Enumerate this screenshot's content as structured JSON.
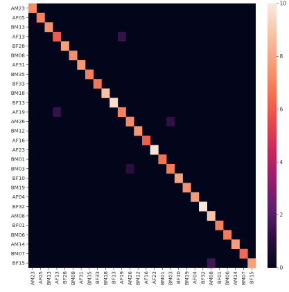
{
  "chart_data": {
    "type": "heatmap",
    "title": "",
    "xlabel": "",
    "ylabel": "",
    "labels": [
      "AM23",
      "AF05",
      "BM13",
      "AF13",
      "BF28",
      "BM08",
      "AF31",
      "BM35",
      "BF33",
      "BM18",
      "BF13",
      "AF19",
      "AM26",
      "BM12",
      "AF16",
      "AF23",
      "BM01",
      "BM03",
      "BF10",
      "BM19",
      "AF04",
      "BF32",
      "AM08",
      "BF01",
      "BM06",
      "AM14",
      "BM07",
      "BF15"
    ],
    "diagonal_values": [
      7.2,
      7.0,
      7.4,
      6.0,
      7.8,
      7.3,
      7.6,
      6.9,
      6.7,
      8.8,
      9.6,
      7.0,
      7.2,
      7.5,
      6.1,
      9.8,
      6.6,
      6.8,
      7.9,
      7.4,
      7.7,
      9.9,
      8.9,
      6.9,
      6.8,
      7.7,
      6.4,
      7.8
    ],
    "off_diagonal": [
      {
        "row": "AF13",
        "col": "AF19",
        "value": 1.3
      },
      {
        "row": "AF19",
        "col": "AF13",
        "value": 1.3
      },
      {
        "row": "AM26",
        "col": "BM03",
        "value": 1.2
      },
      {
        "row": "BM03",
        "col": "AM26",
        "value": 1.0
      },
      {
        "row": "BF15",
        "col": "AM08",
        "value": 1.5
      }
    ],
    "colorbar": {
      "min": 0,
      "max": 10,
      "ticks": [
        0,
        2,
        4,
        6,
        8,
        10
      ],
      "palette": [
        "#03051a",
        "#2b0f40",
        "#5e1f6e",
        "#931e6c",
        "#c9285c",
        "#e9494a",
        "#f57553",
        "#f6a07b",
        "#f7c4a8",
        "#faebdd"
      ]
    }
  }
}
